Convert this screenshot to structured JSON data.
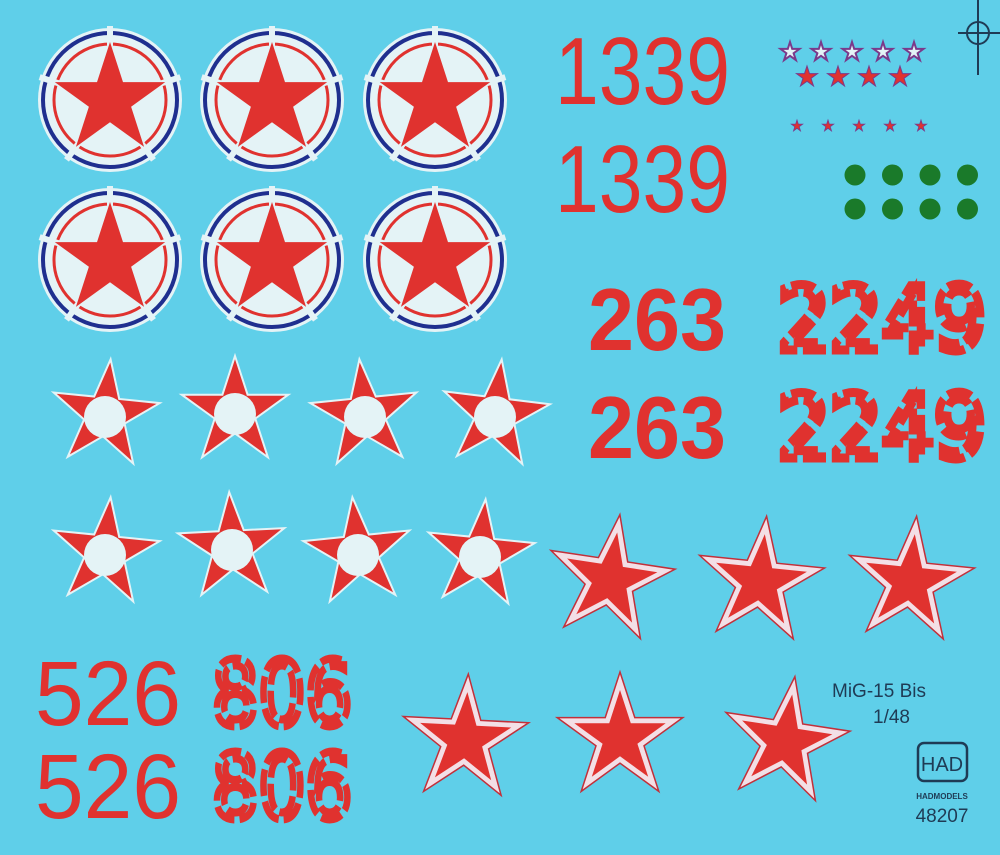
{
  "colors": {
    "background": "#5fcfe9",
    "red": "#e0322f",
    "blue": "#1f2f8f",
    "white": "#e4f3f6",
    "green": "#1a7a2a",
    "outline": "#7a3a8a",
    "ink": "#1f3b55"
  },
  "numbers": {
    "n1339_a": "1339",
    "n1339_b": "1339",
    "n263_a": "263",
    "n263_b": "263",
    "n2249_a": "2249",
    "n2249_b": "2249",
    "n526_a": "526",
    "n526_b": "526",
    "n806_a": "806",
    "n806_b": "806"
  },
  "label": {
    "model": "MiG-15 Bis",
    "scale": "1/48",
    "logo": "HAD",
    "brand": "HADMODELS",
    "code": "48207"
  },
  "decals": {
    "roundels": 6,
    "stars_white_center": 8,
    "stars_white_border": 6,
    "small_outline_stars": 5,
    "small_filled_stars": 4,
    "tiny_stars": 5,
    "green_dots": 8
  }
}
